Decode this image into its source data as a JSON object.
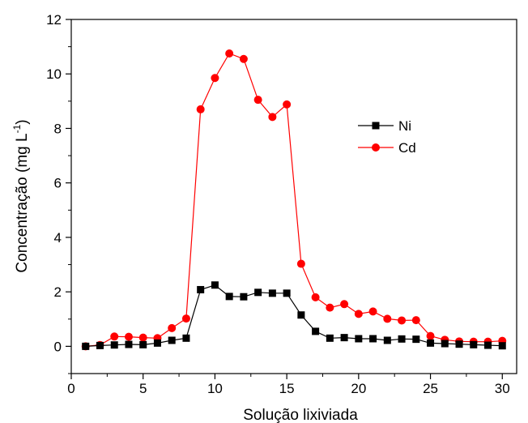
{
  "chart_data": {
    "type": "line",
    "title": "",
    "xlabel": "Solução lixiviada",
    "ylabel_main": "Concentração (mg L",
    "ylabel_sup": "-1",
    "ylabel_close": ")",
    "xlim": [
      0,
      31
    ],
    "ylim": [
      -1,
      12
    ],
    "xticks": [
      0,
      5,
      10,
      15,
      20,
      25,
      30
    ],
    "yticks": [
      0,
      2,
      4,
      6,
      8,
      10,
      12
    ],
    "legend_position": "right",
    "grid": false,
    "x": [
      1,
      2,
      3,
      4,
      5,
      6,
      7,
      8,
      9,
      10,
      11,
      12,
      13,
      14,
      15,
      16,
      17,
      18,
      19,
      20,
      21,
      22,
      23,
      24,
      25,
      26,
      27,
      28,
      29,
      30
    ],
    "series": [
      {
        "name": "Ni",
        "color": "#000000",
        "marker": "square",
        "values": [
          0.0,
          0.03,
          0.05,
          0.07,
          0.06,
          0.12,
          0.22,
          0.3,
          2.08,
          2.25,
          1.83,
          1.82,
          1.98,
          1.95,
          1.95,
          1.15,
          0.55,
          0.3,
          0.32,
          0.28,
          0.28,
          0.22,
          0.27,
          0.26,
          0.12,
          0.1,
          0.08,
          0.06,
          0.04,
          0.02
        ]
      },
      {
        "name": "Cd",
        "color": "#ff0000",
        "marker": "circle",
        "values": [
          0.0,
          0.05,
          0.36,
          0.35,
          0.32,
          0.3,
          0.67,
          1.02,
          8.7,
          9.85,
          10.75,
          10.55,
          9.05,
          8.42,
          8.88,
          3.03,
          1.8,
          1.42,
          1.55,
          1.19,
          1.28,
          1.01,
          0.95,
          0.96,
          0.38,
          0.24,
          0.18,
          0.17,
          0.17,
          0.2
        ]
      }
    ]
  }
}
